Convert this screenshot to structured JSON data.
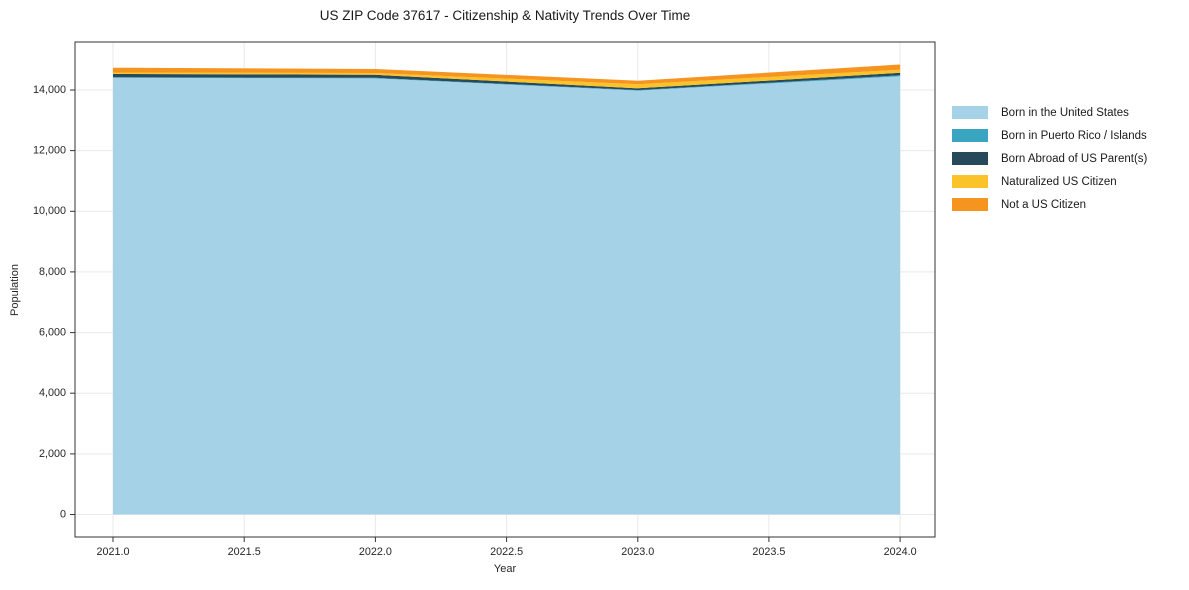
{
  "chart": {
    "title": "US ZIP Code 37617 - Citizenship & Nativity Trends Over Time",
    "xlabel": "Year",
    "ylabel": "Population"
  },
  "chart_data": {
    "type": "area",
    "stacked": true,
    "title": "US ZIP Code 37617 - Citizenship & Nativity Trends Over Time",
    "xlabel": "Year",
    "ylabel": "Population",
    "x": [
      2021,
      2022,
      2023,
      2024
    ],
    "series": [
      {
        "name": "Born in the United States",
        "color": "#a6d2e7",
        "values": [
          14400,
          14380,
          13980,
          14450
        ]
      },
      {
        "name": "Born in Puerto Rico / Islands",
        "color": "#3aa5c1",
        "values": [
          20,
          20,
          15,
          35
        ]
      },
      {
        "name": "Born Abroad of US Parent(s)",
        "color": "#26495c",
        "values": [
          110,
          100,
          60,
          80
        ]
      },
      {
        "name": "Naturalized US Citizen",
        "color": "#fbc32a",
        "values": [
          45,
          60,
          135,
          105
        ]
      },
      {
        "name": "Not a US Citizen",
        "color": "#f5941e",
        "values": [
          160,
          130,
          115,
          170
        ]
      }
    ],
    "x_ticks": {
      "values": [
        2021.0,
        2021.5,
        2022.0,
        2022.5,
        2023.0,
        2023.5,
        2024.0
      ],
      "labels": [
        "2021.0",
        "2021.5",
        "2022.0",
        "2022.5",
        "2023.0",
        "2023.5",
        "2024.0"
      ]
    },
    "y_ticks": {
      "values": [
        0,
        2000,
        4000,
        6000,
        8000,
        10000,
        12000,
        14000
      ],
      "labels": [
        "0",
        "2,000",
        "4,000",
        "6,000",
        "8,000",
        "10,000",
        "12,000",
        "14,000"
      ]
    },
    "xlim": [
      2020.855,
      2024.133
    ],
    "ylim": [
      -742,
      15582
    ],
    "grid": true,
    "grid_color": "#e9e9e9",
    "spine_color": "#333333",
    "legend_position": "right"
  }
}
